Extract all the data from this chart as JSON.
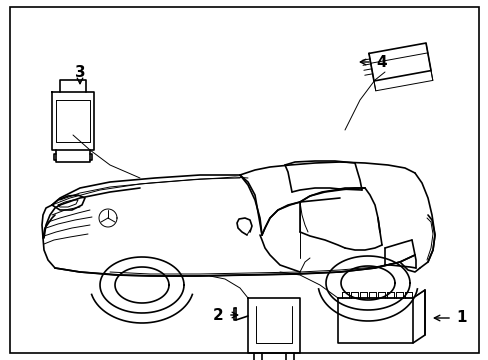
{
  "background_color": "#ffffff",
  "fig_width": 4.89,
  "fig_height": 3.6,
  "dpi": 100,
  "car_color": "#000000",
  "lw_main": 1.2,
  "lw_thin": 0.7,
  "label_fontsize": 11,
  "border": [
    0.02,
    0.02,
    0.96,
    0.96
  ]
}
